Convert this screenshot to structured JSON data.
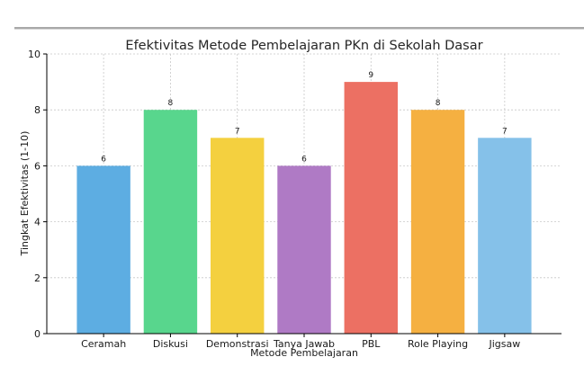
{
  "chart_data": {
    "type": "bar",
    "title": "Efektivitas Metode Pembelajaran PKn di Sekolah Dasar",
    "xlabel": "Metode Pembelajaran",
    "ylabel": "Tingkat Efektivitas (1-10)",
    "categories": [
      "Ceramah",
      "Diskusi",
      "Demonstrasi",
      "Tanya Jawab",
      "PBL",
      "Role Playing",
      "Jigsaw"
    ],
    "values": [
      6,
      8,
      7,
      6,
      9,
      8,
      7
    ],
    "colors": [
      "#5dade2",
      "#58d68d",
      "#f4d03f",
      "#af7ac5",
      "#ec7063",
      "#f5b041",
      "#85c1e9"
    ],
    "ylim": [
      0,
      10
    ],
    "yticks": [
      "0",
      "2",
      "4",
      "6",
      "8",
      "10"
    ],
    "grid": true,
    "data_labels": true
  }
}
